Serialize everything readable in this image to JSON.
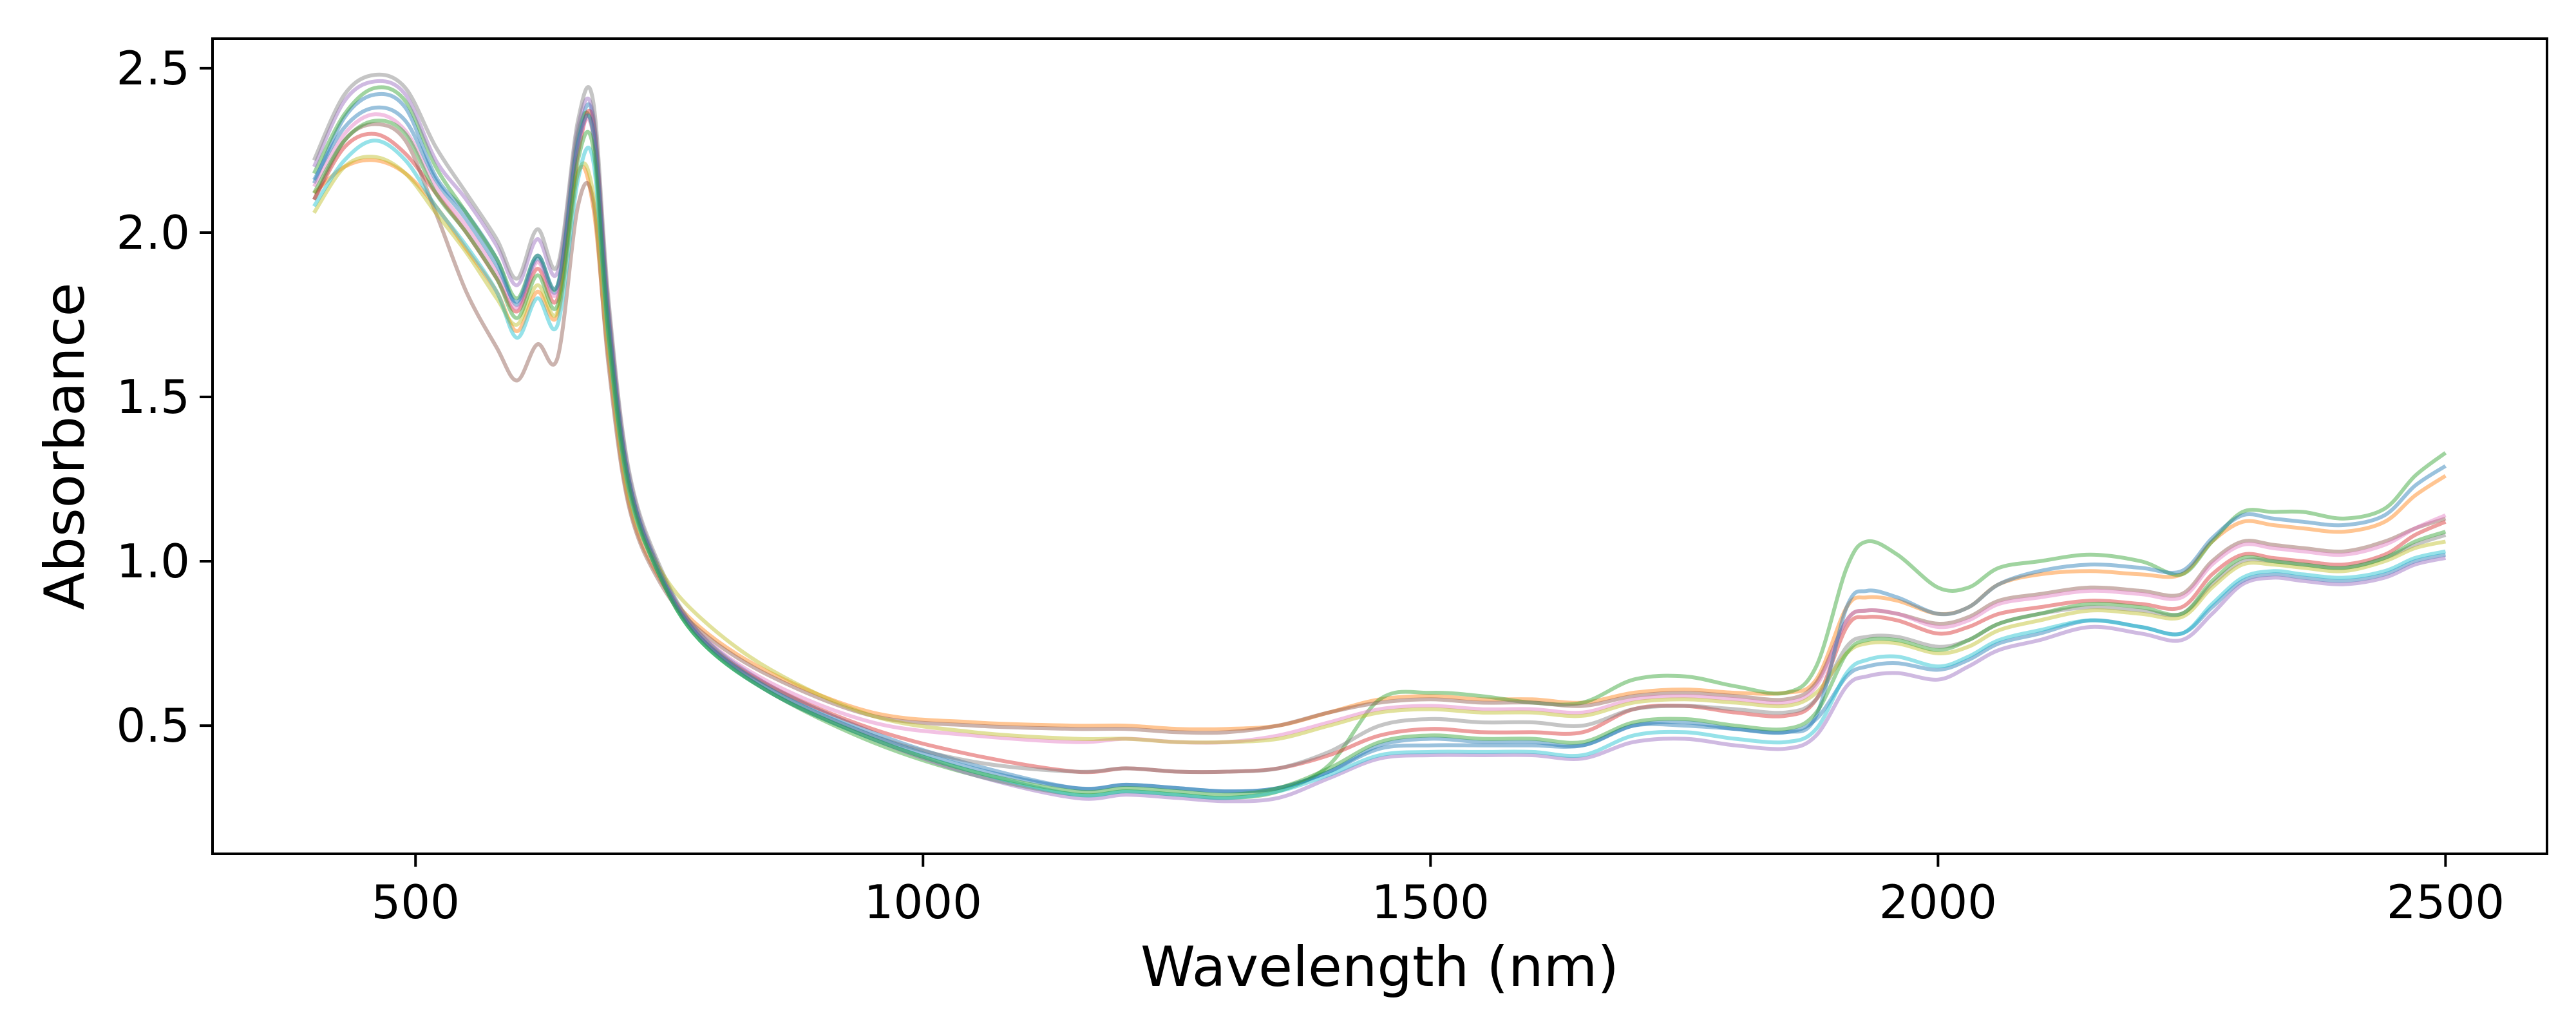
{
  "chart_data": {
    "type": "line",
    "title": "",
    "xlabel": "Wavelength (nm)",
    "ylabel": "Absorbance",
    "xlim": [
      300,
      2600
    ],
    "ylim": [
      0.11,
      2.59
    ],
    "xticks": [
      500,
      1000,
      1500,
      2000,
      2500
    ],
    "xtick_labels": [
      "500",
      "1000",
      "1500",
      "2000",
      "2500"
    ],
    "yticks": [
      0.5,
      1.0,
      1.5,
      2.0,
      2.5
    ],
    "ytick_labels": [
      "0.5",
      "1.0",
      "1.5",
      "2.0",
      "2.5"
    ],
    "grid": false,
    "legend": "none",
    "line_opacity": 0.45,
    "x": [
      400,
      430,
      460,
      490,
      520,
      550,
      580,
      600,
      620,
      640,
      660,
      675,
      690,
      710,
      740,
      780,
      850,
      950,
      1050,
      1150,
      1200,
      1250,
      1300,
      1350,
      1400,
      1450,
      1500,
      1550,
      1600,
      1650,
      1700,
      1750,
      1800,
      1850,
      1880,
      1910,
      1930,
      1960,
      2000,
      2030,
      2060,
      2100,
      2150,
      2200,
      2240,
      2270,
      2300,
      2330,
      2360,
      2400,
      2440,
      2470,
      2500
    ],
    "series": [
      {
        "color": "#1f77b4",
        "values": [
          2.15,
          2.35,
          2.42,
          2.38,
          2.17,
          2.06,
          1.92,
          1.78,
          1.92,
          1.83,
          2.28,
          2.35,
          1.75,
          1.25,
          0.98,
          0.78,
          0.62,
          0.48,
          0.38,
          0.31,
          0.32,
          0.31,
          0.3,
          0.31,
          0.36,
          0.43,
          0.44,
          0.44,
          0.44,
          0.44,
          0.5,
          0.5,
          0.49,
          0.48,
          0.52,
          0.65,
          0.68,
          0.69,
          0.67,
          0.7,
          0.75,
          0.78,
          0.82,
          0.8,
          0.78,
          0.86,
          0.94,
          0.96,
          0.95,
          0.94,
          0.96,
          1.0,
          1.02
        ]
      },
      {
        "color": "#ff7f0e",
        "values": [
          2.12,
          2.2,
          2.22,
          2.18,
          2.08,
          1.95,
          1.82,
          1.7,
          1.82,
          1.75,
          2.18,
          2.08,
          1.62,
          1.18,
          0.95,
          0.8,
          0.66,
          0.54,
          0.51,
          0.5,
          0.5,
          0.49,
          0.49,
          0.5,
          0.54,
          0.58,
          0.59,
          0.58,
          0.58,
          0.57,
          0.6,
          0.61,
          0.6,
          0.6,
          0.64,
          0.86,
          0.89,
          0.88,
          0.84,
          0.86,
          0.93,
          0.96,
          0.97,
          0.96,
          0.96,
          1.06,
          1.12,
          1.11,
          1.1,
          1.09,
          1.12,
          1.2,
          1.26
        ]
      },
      {
        "color": "#2ca02c",
        "values": [
          2.18,
          2.36,
          2.44,
          2.4,
          2.2,
          2.06,
          1.92,
          1.8,
          1.93,
          1.84,
          2.3,
          2.3,
          1.72,
          1.24,
          0.96,
          0.76,
          0.6,
          0.45,
          0.35,
          0.29,
          0.3,
          0.29,
          0.28,
          0.3,
          0.38,
          0.58,
          0.6,
          0.59,
          0.57,
          0.57,
          0.64,
          0.65,
          0.62,
          0.6,
          0.68,
          0.98,
          1.06,
          1.02,
          0.92,
          0.92,
          0.98,
          1.0,
          1.02,
          1.0,
          0.96,
          1.06,
          1.15,
          1.15,
          1.15,
          1.13,
          1.16,
          1.26,
          1.33
        ]
      },
      {
        "color": "#d62728",
        "values": [
          2.1,
          2.26,
          2.3,
          2.24,
          2.12,
          2.0,
          1.86,
          1.76,
          1.89,
          1.8,
          2.24,
          2.34,
          1.76,
          1.25,
          0.97,
          0.77,
          0.62,
          0.49,
          0.41,
          0.36,
          0.37,
          0.36,
          0.36,
          0.37,
          0.41,
          0.47,
          0.49,
          0.48,
          0.48,
          0.48,
          0.55,
          0.56,
          0.54,
          0.53,
          0.58,
          0.8,
          0.83,
          0.82,
          0.78,
          0.8,
          0.84,
          0.86,
          0.88,
          0.87,
          0.86,
          0.96,
          1.02,
          1.01,
          1.0,
          0.99,
          1.02,
          1.08,
          1.12
        ]
      },
      {
        "color": "#9467bd",
        "values": [
          2.2,
          2.4,
          2.46,
          2.42,
          2.22,
          2.1,
          1.96,
          1.84,
          1.98,
          1.88,
          2.32,
          2.36,
          1.78,
          1.27,
          0.98,
          0.77,
          0.6,
          0.46,
          0.35,
          0.28,
          0.29,
          0.28,
          0.27,
          0.28,
          0.34,
          0.4,
          0.41,
          0.41,
          0.41,
          0.4,
          0.45,
          0.46,
          0.44,
          0.43,
          0.47,
          0.62,
          0.65,
          0.66,
          0.64,
          0.68,
          0.73,
          0.76,
          0.8,
          0.78,
          0.76,
          0.84,
          0.93,
          0.95,
          0.94,
          0.93,
          0.95,
          0.99,
          1.01
        ]
      },
      {
        "color": "#8c564b",
        "values": [
          2.1,
          2.28,
          2.33,
          2.28,
          2.06,
          1.82,
          1.65,
          1.55,
          1.66,
          1.62,
          2.08,
          2.1,
          1.6,
          1.17,
          0.94,
          0.79,
          0.65,
          0.53,
          0.5,
          0.49,
          0.49,
          0.48,
          0.48,
          0.5,
          0.54,
          0.57,
          0.58,
          0.57,
          0.57,
          0.56,
          0.59,
          0.6,
          0.59,
          0.58,
          0.63,
          0.82,
          0.85,
          0.84,
          0.81,
          0.83,
          0.88,
          0.9,
          0.92,
          0.91,
          0.9,
          1.0,
          1.06,
          1.05,
          1.04,
          1.03,
          1.06,
          1.1,
          1.13
        ]
      },
      {
        "color": "#e377c2",
        "values": [
          2.14,
          2.3,
          2.36,
          2.31,
          2.14,
          2.02,
          1.88,
          1.77,
          1.91,
          1.82,
          2.26,
          2.3,
          1.74,
          1.24,
          0.97,
          0.78,
          0.63,
          0.51,
          0.47,
          0.45,
          0.46,
          0.45,
          0.45,
          0.47,
          0.51,
          0.55,
          0.56,
          0.55,
          0.55,
          0.54,
          0.58,
          0.59,
          0.58,
          0.57,
          0.62,
          0.82,
          0.85,
          0.84,
          0.8,
          0.82,
          0.87,
          0.89,
          0.91,
          0.9,
          0.89,
          0.99,
          1.05,
          1.04,
          1.03,
          1.02,
          1.05,
          1.1,
          1.14
        ]
      },
      {
        "color": "#7f7f7f",
        "values": [
          2.22,
          2.42,
          2.48,
          2.44,
          2.26,
          2.12,
          1.98,
          1.86,
          2.01,
          1.9,
          2.34,
          2.4,
          1.8,
          1.28,
          0.99,
          0.78,
          0.61,
          0.47,
          0.39,
          0.36,
          0.37,
          0.36,
          0.36,
          0.37,
          0.42,
          0.5,
          0.52,
          0.51,
          0.51,
          0.5,
          0.55,
          0.56,
          0.55,
          0.54,
          0.58,
          0.74,
          0.77,
          0.77,
          0.74,
          0.76,
          0.81,
          0.84,
          0.86,
          0.85,
          0.84,
          0.93,
          1.0,
          1.0,
          0.99,
          0.98,
          1.01,
          1.05,
          1.08
        ]
      },
      {
        "color": "#bcbd22",
        "values": [
          2.06,
          2.2,
          2.23,
          2.18,
          2.06,
          1.94,
          1.8,
          1.72,
          1.84,
          1.76,
          2.18,
          2.12,
          1.65,
          1.2,
          0.98,
          0.83,
          0.67,
          0.53,
          0.48,
          0.46,
          0.46,
          0.45,
          0.45,
          0.46,
          0.5,
          0.54,
          0.55,
          0.54,
          0.54,
          0.53,
          0.57,
          0.58,
          0.57,
          0.56,
          0.6,
          0.72,
          0.75,
          0.75,
          0.72,
          0.74,
          0.79,
          0.82,
          0.85,
          0.84,
          0.83,
          0.92,
          0.99,
          0.99,
          0.98,
          0.97,
          1.0,
          1.04,
          1.06
        ]
      },
      {
        "color": "#17becf",
        "values": [
          2.08,
          2.22,
          2.28,
          2.22,
          2.08,
          1.96,
          1.82,
          1.68,
          1.8,
          1.72,
          2.16,
          2.22,
          1.68,
          1.22,
          0.96,
          0.76,
          0.6,
          0.46,
          0.36,
          0.29,
          0.3,
          0.29,
          0.28,
          0.3,
          0.35,
          0.41,
          0.42,
          0.42,
          0.42,
          0.41,
          0.47,
          0.48,
          0.46,
          0.45,
          0.49,
          0.66,
          0.7,
          0.71,
          0.68,
          0.71,
          0.76,
          0.79,
          0.82,
          0.8,
          0.78,
          0.87,
          0.95,
          0.97,
          0.96,
          0.95,
          0.97,
          1.01,
          1.03
        ]
      },
      {
        "color": "#1f77b4",
        "values": [
          2.16,
          2.32,
          2.38,
          2.34,
          2.16,
          2.04,
          1.9,
          1.79,
          1.93,
          1.84,
          2.27,
          2.31,
          1.74,
          1.25,
          0.97,
          0.77,
          0.61,
          0.47,
          0.37,
          0.31,
          0.32,
          0.31,
          0.3,
          0.31,
          0.36,
          0.44,
          0.46,
          0.45,
          0.45,
          0.44,
          0.5,
          0.51,
          0.49,
          0.48,
          0.53,
          0.86,
          0.91,
          0.89,
          0.84,
          0.86,
          0.93,
          0.97,
          0.99,
          0.98,
          0.97,
          1.07,
          1.14,
          1.13,
          1.12,
          1.11,
          1.14,
          1.23,
          1.29
        ]
      },
      {
        "color": "#2ca02c",
        "values": [
          2.12,
          2.28,
          2.34,
          2.3,
          2.12,
          2.0,
          1.86,
          1.74,
          1.87,
          1.78,
          2.22,
          2.26,
          1.7,
          1.23,
          0.96,
          0.76,
          0.6,
          0.46,
          0.36,
          0.3,
          0.31,
          0.3,
          0.29,
          0.31,
          0.37,
          0.45,
          0.47,
          0.46,
          0.46,
          0.45,
          0.51,
          0.52,
          0.5,
          0.49,
          0.54,
          0.72,
          0.76,
          0.76,
          0.73,
          0.76,
          0.81,
          0.84,
          0.87,
          0.86,
          0.84,
          0.94,
          1.01,
          1.0,
          0.99,
          0.98,
          1.01,
          1.06,
          1.09
        ]
      }
    ]
  }
}
